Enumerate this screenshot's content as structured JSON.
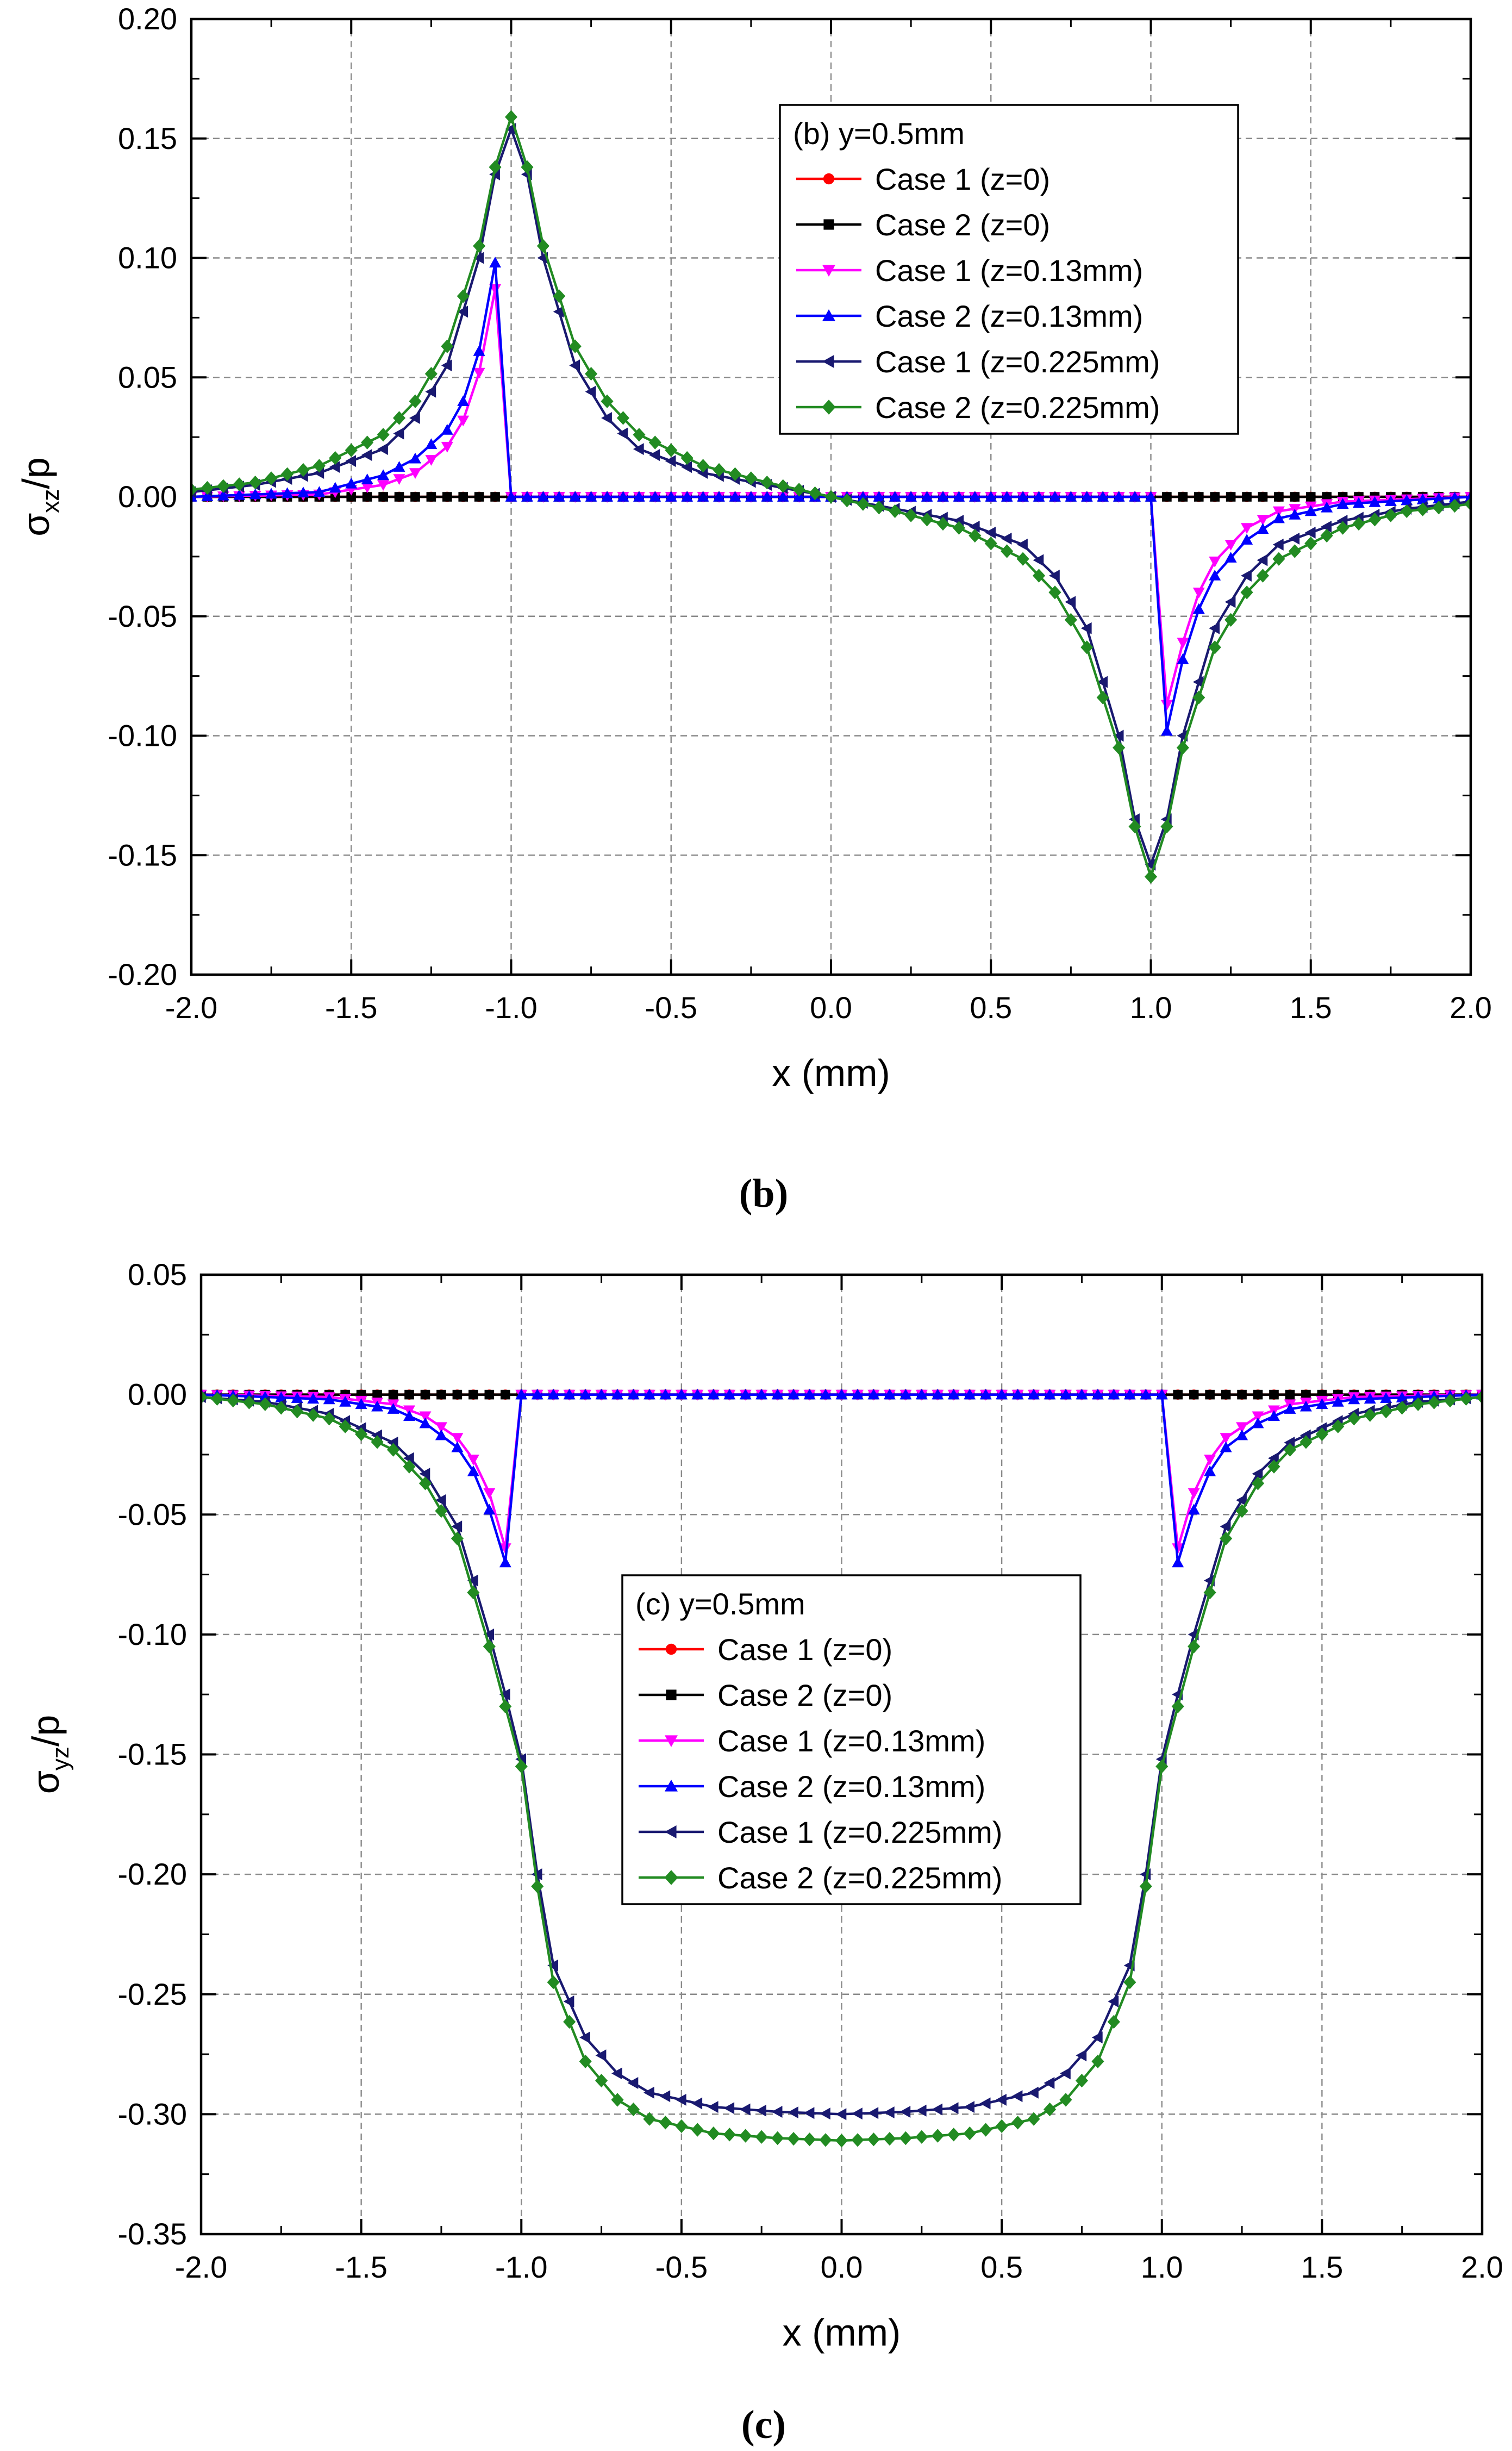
{
  "chart_data": [
    {
      "type": "line",
      "caption": "(b)",
      "xlabel": "x (mm)",
      "ylabel": {
        "base": "σ",
        "sub": "xz",
        "suffix": "/p"
      },
      "xlim": [
        -2.0,
        2.0
      ],
      "ylim": [
        -0.2,
        0.2
      ],
      "xticks": [
        -2.0,
        -1.5,
        -1.0,
        -0.5,
        0.0,
        0.5,
        1.0,
        1.5,
        2.0
      ],
      "xtick_labels": [
        "-2.0",
        "-1.5",
        "-1.0",
        "-0.5",
        "0.0",
        "0.5",
        "1.0",
        "1.5",
        "2.0"
      ],
      "yticks": [
        -0.2,
        -0.15,
        -0.1,
        -0.05,
        0.0,
        0.05,
        0.1,
        0.15,
        0.2
      ],
      "ytick_labels": [
        "-0.20",
        "-0.15",
        "-0.10",
        "-0.05",
        "0.00",
        "0.05",
        "0.10",
        "0.15",
        "0.20"
      ],
      "grid": true,
      "legend": {
        "title": "(b) y=0.5mm",
        "position": "top-center",
        "entries": [
          "Case 1 (z=0)",
          "Case 2 (z=0)",
          "Case 1 (z=0.13mm)",
          "Case 2 (z=0.13mm)",
          "Case 1 (z=0.225mm)",
          "Case 2 (z=0.225mm)"
        ]
      },
      "series": [
        {
          "name": "Case 1 (z=0)",
          "color": "#ff0000",
          "marker": "circle",
          "points": [
            [
              -2.0,
              0.0
            ],
            [
              -1.0,
              0.0
            ],
            [
              1.0,
              0.0
            ],
            [
              2.0,
              0.0
            ]
          ]
        },
        {
          "name": "Case 2 (z=0)",
          "color": "#000000",
          "marker": "square",
          "points": [
            [
              -2.0,
              0.0
            ],
            [
              -1.0,
              0.0
            ],
            [
              1.0,
              0.0
            ],
            [
              2.0,
              0.0
            ]
          ]
        },
        {
          "name": "Case 1 (z=0.13mm)",
          "color": "#ff00ff",
          "marker": "triangle-down",
          "points": [
            [
              -2.0,
              0.0
            ],
            [
              -1.6,
              0.001
            ],
            [
              -1.4,
              0.005
            ],
            [
              -1.3,
              0.01
            ],
            [
              -1.2,
              0.021
            ],
            [
              -1.15,
              0.032
            ],
            [
              -1.1,
              0.052
            ],
            [
              -1.05,
              0.087
            ],
            [
              -1.0,
              0.0
            ],
            [
              1.0,
              0.0
            ],
            [
              1.05,
              -0.087
            ],
            [
              1.1,
              -0.061
            ],
            [
              1.15,
              -0.04
            ],
            [
              1.2,
              -0.027
            ],
            [
              1.3,
              -0.013
            ],
            [
              1.4,
              -0.006
            ],
            [
              1.6,
              -0.002
            ],
            [
              2.0,
              0.0
            ]
          ]
        },
        {
          "name": "Case 2 (z=0.13mm)",
          "color": "#0000ff",
          "marker": "triangle-up",
          "points": [
            [
              -2.0,
              0.0
            ],
            [
              -1.6,
              0.002
            ],
            [
              -1.4,
              0.009
            ],
            [
              -1.3,
              0.016
            ],
            [
              -1.2,
              0.028
            ],
            [
              -1.15,
              0.04
            ],
            [
              -1.1,
              0.061
            ],
            [
              -1.05,
              0.098
            ],
            [
              -1.0,
              0.0
            ],
            [
              1.0,
              0.0
            ],
            [
              1.05,
              -0.098
            ],
            [
              1.1,
              -0.068
            ],
            [
              1.15,
              -0.047
            ],
            [
              1.2,
              -0.033
            ],
            [
              1.3,
              -0.018
            ],
            [
              1.4,
              -0.009
            ],
            [
              1.6,
              -0.003
            ],
            [
              2.0,
              0.0
            ]
          ]
        },
        {
          "name": "Case 1 (z=0.225mm)",
          "color": "#191970",
          "marker": "triangle-left",
          "points": [
            [
              -2.0,
              0.002
            ],
            [
              -1.8,
              0.005
            ],
            [
              -1.6,
              0.01
            ],
            [
              -1.4,
              0.02
            ],
            [
              -1.3,
              0.033
            ],
            [
              -1.2,
              0.055
            ],
            [
              -1.1,
              0.1
            ],
            [
              -1.05,
              0.135
            ],
            [
              -1.0,
              0.154
            ],
            [
              -0.95,
              0.135
            ],
            [
              -0.9,
              0.1
            ],
            [
              -0.8,
              0.055
            ],
            [
              -0.7,
              0.033
            ],
            [
              -0.6,
              0.02
            ],
            [
              -0.4,
              0.01
            ],
            [
              -0.2,
              0.005
            ],
            [
              0.0,
              0.0
            ],
            [
              0.2,
              -0.005
            ],
            [
              0.4,
              -0.01
            ],
            [
              0.6,
              -0.02
            ],
            [
              0.7,
              -0.033
            ],
            [
              0.8,
              -0.055
            ],
            [
              0.9,
              -0.1
            ],
            [
              0.95,
              -0.135
            ],
            [
              1.0,
              -0.154
            ],
            [
              1.05,
              -0.135
            ],
            [
              1.1,
              -0.1
            ],
            [
              1.2,
              -0.055
            ],
            [
              1.3,
              -0.033
            ],
            [
              1.4,
              -0.02
            ],
            [
              1.6,
              -0.01
            ],
            [
              1.8,
              -0.005
            ],
            [
              2.0,
              -0.002
            ]
          ]
        },
        {
          "name": "Case 2 (z=0.225mm)",
          "color": "#228b22",
          "marker": "diamond",
          "points": [
            [
              -2.0,
              0.003
            ],
            [
              -1.8,
              0.006
            ],
            [
              -1.6,
              0.013
            ],
            [
              -1.4,
              0.026
            ],
            [
              -1.3,
              0.04
            ],
            [
              -1.2,
              0.063
            ],
            [
              -1.1,
              0.105
            ],
            [
              -1.05,
              0.138
            ],
            [
              -1.0,
              0.159
            ],
            [
              -0.95,
              0.138
            ],
            [
              -0.9,
              0.105
            ],
            [
              -0.8,
              0.063
            ],
            [
              -0.7,
              0.04
            ],
            [
              -0.6,
              0.026
            ],
            [
              -0.4,
              0.013
            ],
            [
              -0.2,
              0.006
            ],
            [
              0.0,
              0.0
            ],
            [
              0.2,
              -0.006
            ],
            [
              0.4,
              -0.013
            ],
            [
              0.6,
              -0.026
            ],
            [
              0.7,
              -0.04
            ],
            [
              0.8,
              -0.063
            ],
            [
              0.9,
              -0.105
            ],
            [
              0.95,
              -0.138
            ],
            [
              1.0,
              -0.159
            ],
            [
              1.05,
              -0.138
            ],
            [
              1.1,
              -0.105
            ],
            [
              1.2,
              -0.063
            ],
            [
              1.3,
              -0.04
            ],
            [
              1.4,
              -0.026
            ],
            [
              1.6,
              -0.013
            ],
            [
              1.8,
              -0.006
            ],
            [
              2.0,
              -0.003
            ]
          ]
        }
      ]
    },
    {
      "type": "line",
      "caption": "(c)",
      "xlabel": "x (mm)",
      "ylabel": {
        "base": "σ",
        "sub": "yz",
        "suffix": "/p"
      },
      "xlim": [
        -2.0,
        2.0
      ],
      "ylim": [
        -0.35,
        0.05
      ],
      "xticks": [
        -2.0,
        -1.5,
        -1.0,
        -0.5,
        0.0,
        0.5,
        1.0,
        1.5,
        2.0
      ],
      "xtick_labels": [
        "-2.0",
        "-1.5",
        "-1.0",
        "-0.5",
        "0.0",
        "0.5",
        "1.0",
        "1.5",
        "2.0"
      ],
      "yticks": [
        -0.35,
        -0.3,
        -0.25,
        -0.2,
        -0.15,
        -0.1,
        -0.05,
        0.0,
        0.05
      ],
      "ytick_labels": [
        "-0.35",
        "-0.30",
        "-0.25",
        "-0.20",
        "-0.15",
        "-0.10",
        "-0.05",
        "0.00",
        "0.05"
      ],
      "grid": true,
      "legend": {
        "title": "(c) y=0.5mm",
        "position": "center",
        "entries": [
          "Case 1 (z=0)",
          "Case 2 (z=0)",
          "Case 1 (z=0.13mm)",
          "Case 2 (z=0.13mm)",
          "Case 1 (z=0.225mm)",
          "Case 2 (z=0.225mm)"
        ]
      },
      "series": [
        {
          "name": "Case 1 (z=0)",
          "color": "#ff0000",
          "marker": "circle",
          "points": [
            [
              -2.0,
              0.0
            ],
            [
              -1.0,
              0.0
            ],
            [
              1.0,
              0.0
            ],
            [
              2.0,
              0.0
            ]
          ]
        },
        {
          "name": "Case 2 (z=0)",
          "color": "#000000",
          "marker": "square",
          "points": [
            [
              -2.0,
              0.0
            ],
            [
              -1.0,
              0.0
            ],
            [
              1.0,
              0.0
            ],
            [
              2.0,
              0.0
            ]
          ]
        },
        {
          "name": "Case 1 (z=0.13mm)",
          "color": "#ff00ff",
          "marker": "triangle-down",
          "points": [
            [
              -2.0,
              0.0
            ],
            [
              -1.6,
              -0.001
            ],
            [
              -1.4,
              -0.004
            ],
            [
              -1.3,
              -0.009
            ],
            [
              -1.2,
              -0.018
            ],
            [
              -1.15,
              -0.027
            ],
            [
              -1.1,
              -0.041
            ],
            [
              -1.05,
              -0.064
            ],
            [
              -1.0,
              0.0
            ],
            [
              1.0,
              0.0
            ],
            [
              1.05,
              -0.064
            ],
            [
              1.1,
              -0.041
            ],
            [
              1.15,
              -0.027
            ],
            [
              1.2,
              -0.018
            ],
            [
              1.3,
              -0.009
            ],
            [
              1.4,
              -0.004
            ],
            [
              1.6,
              -0.001
            ],
            [
              2.0,
              0.0
            ]
          ]
        },
        {
          "name": "Case 2 (z=0.13mm)",
          "color": "#0000ff",
          "marker": "triangle-up",
          "points": [
            [
              -2.0,
              0.0
            ],
            [
              -1.6,
              -0.002
            ],
            [
              -1.4,
              -0.006
            ],
            [
              -1.3,
              -0.012
            ],
            [
              -1.2,
              -0.022
            ],
            [
              -1.15,
              -0.032
            ],
            [
              -1.1,
              -0.048
            ],
            [
              -1.05,
              -0.07
            ],
            [
              -1.0,
              0.0
            ],
            [
              1.0,
              0.0
            ],
            [
              1.05,
              -0.07
            ],
            [
              1.1,
              -0.048
            ],
            [
              1.15,
              -0.032
            ],
            [
              1.2,
              -0.022
            ],
            [
              1.3,
              -0.012
            ],
            [
              1.4,
              -0.006
            ],
            [
              1.6,
              -0.002
            ],
            [
              2.0,
              0.0
            ]
          ]
        },
        {
          "name": "Case 1 (z=0.225mm)",
          "color": "#191970",
          "marker": "triangle-left",
          "points": [
            [
              -2.0,
              -0.001
            ],
            [
              -1.8,
              -0.003
            ],
            [
              -1.6,
              -0.008
            ],
            [
              -1.4,
              -0.02
            ],
            [
              -1.3,
              -0.033
            ],
            [
              -1.2,
              -0.055
            ],
            [
              -1.1,
              -0.1
            ],
            [
              -1.05,
              -0.125
            ],
            [
              -1.0,
              -0.152
            ],
            [
              -0.95,
              -0.2
            ],
            [
              -0.9,
              -0.238
            ],
            [
              -0.8,
              -0.268
            ],
            [
              -0.7,
              -0.283
            ],
            [
              -0.6,
              -0.291
            ],
            [
              -0.4,
              -0.297
            ],
            [
              -0.2,
              -0.299
            ],
            [
              0.0,
              -0.3
            ],
            [
              0.2,
              -0.299
            ],
            [
              0.4,
              -0.297
            ],
            [
              0.6,
              -0.291
            ],
            [
              0.7,
              -0.283
            ],
            [
              0.8,
              -0.268
            ],
            [
              0.9,
              -0.238
            ],
            [
              0.95,
              -0.2
            ],
            [
              1.0,
              -0.152
            ],
            [
              1.05,
              -0.125
            ],
            [
              1.1,
              -0.1
            ],
            [
              1.2,
              -0.055
            ],
            [
              1.3,
              -0.033
            ],
            [
              1.4,
              -0.02
            ],
            [
              1.6,
              -0.008
            ],
            [
              1.8,
              -0.003
            ],
            [
              2.0,
              -0.001
            ]
          ]
        },
        {
          "name": "Case 2 (z=0.225mm)",
          "color": "#228b22",
          "marker": "diamond",
          "points": [
            [
              -2.0,
              -0.001
            ],
            [
              -1.8,
              -0.004
            ],
            [
              -1.6,
              -0.01
            ],
            [
              -1.4,
              -0.023
            ],
            [
              -1.3,
              -0.037
            ],
            [
              -1.2,
              -0.06
            ],
            [
              -1.1,
              -0.105
            ],
            [
              -1.05,
              -0.13
            ],
            [
              -1.0,
              -0.155
            ],
            [
              -0.95,
              -0.205
            ],
            [
              -0.9,
              -0.245
            ],
            [
              -0.8,
              -0.278
            ],
            [
              -0.7,
              -0.294
            ],
            [
              -0.6,
              -0.302
            ],
            [
              -0.4,
              -0.308
            ],
            [
              -0.2,
              -0.31
            ],
            [
              0.0,
              -0.311
            ],
            [
              0.2,
              -0.31
            ],
            [
              0.4,
              -0.308
            ],
            [
              0.6,
              -0.302
            ],
            [
              0.7,
              -0.294
            ],
            [
              0.8,
              -0.278
            ],
            [
              0.9,
              -0.245
            ],
            [
              0.95,
              -0.205
            ],
            [
              1.0,
              -0.155
            ],
            [
              1.05,
              -0.13
            ],
            [
              1.1,
              -0.105
            ],
            [
              1.2,
              -0.06
            ],
            [
              1.3,
              -0.037
            ],
            [
              1.4,
              -0.023
            ],
            [
              1.6,
              -0.01
            ],
            [
              1.8,
              -0.004
            ],
            [
              2.0,
              -0.001
            ]
          ]
        }
      ]
    }
  ]
}
